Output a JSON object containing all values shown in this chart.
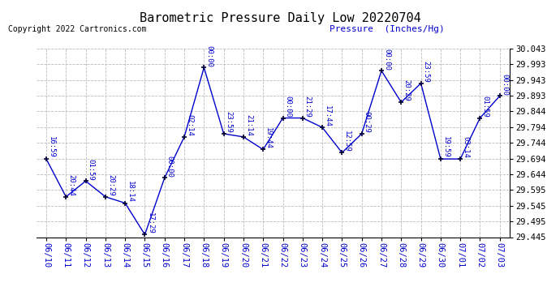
{
  "title": "Barometric Pressure Daily Low 20220704",
  "pressure_label": "Pressure  (Inches/Hg)",
  "copyright": "Copyright 2022 Cartronics.com",
  "dates": [
    "06/10",
    "06/11",
    "06/12",
    "06/13",
    "06/14",
    "06/15",
    "06/16",
    "06/17",
    "06/18",
    "06/19",
    "06/20",
    "06/21",
    "06/22",
    "06/23",
    "06/24",
    "06/25",
    "06/26",
    "06/27",
    "06/28",
    "06/29",
    "06/30",
    "07/01",
    "07/02",
    "07/03"
  ],
  "values": [
    29.693,
    29.573,
    29.623,
    29.573,
    29.553,
    29.453,
    29.633,
    29.763,
    29.983,
    29.773,
    29.763,
    29.723,
    29.823,
    29.823,
    29.793,
    29.713,
    29.773,
    29.973,
    29.873,
    29.933,
    29.693,
    29.693,
    29.823,
    29.893
  ],
  "times": [
    "16:59",
    "20:44",
    "01:59",
    "20:29",
    "18:14",
    "17:29",
    "00:00",
    "02:14",
    "00:00",
    "23:59",
    "21:14",
    "19:44",
    "00:00",
    "21:29",
    "17:44",
    "12:59",
    "00:29",
    "00:00",
    "20:29",
    "23:59",
    "19:59",
    "03:14",
    "01:59",
    "00:00"
  ],
  "ylim_min": 29.445,
  "ylim_max": 30.043,
  "yticks": [
    29.445,
    29.495,
    29.545,
    29.595,
    29.644,
    29.694,
    29.744,
    29.794,
    29.844,
    29.893,
    29.943,
    29.993,
    30.043
  ],
  "line_color": "#0000CC",
  "marker_color": "#000033",
  "title_color": "#000000",
  "annotation_color": "#0000CC",
  "copyright_color": "#000000",
  "pressure_label_color": "#0000CC",
  "ytick_color": "#000000",
  "xtick_color": "#0000CC",
  "background_color": "#ffffff",
  "grid_color": "#bbbbbb",
  "title_fontsize": 11,
  "annotation_fontsize": 6.5,
  "tick_fontsize": 7.5
}
